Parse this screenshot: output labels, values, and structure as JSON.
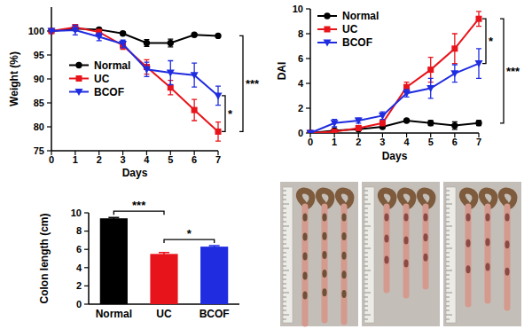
{
  "chart_data": [
    {
      "type": "line",
      "y_label": "Weight (%)",
      "x_label": "Days",
      "x": [
        0,
        1,
        2,
        3,
        4,
        5,
        6,
        7
      ],
      "xlim": [
        0,
        7
      ],
      "xticks": [
        0,
        1,
        2,
        3,
        4,
        5,
        6,
        7
      ],
      "ylim": [
        75,
        105
      ],
      "yticks": [
        75,
        80,
        85,
        90,
        95,
        100
      ],
      "legend": "center left",
      "series": [
        {
          "name": "Normal",
          "color": "#000000",
          "marker": "circle",
          "values": [
            100,
            100.5,
            100.3,
            99.5,
            97.5,
            97.5,
            99.2,
            99.0
          ],
          "errors": [
            0,
            0.3,
            0.3,
            0.3,
            0.7,
            0.8,
            0.3,
            0.3
          ]
        },
        {
          "name": "UC",
          "color": "#e8141b",
          "marker": "square",
          "values": [
            100,
            100.8,
            99.8,
            97.0,
            92.5,
            88.2,
            83.5,
            79.0
          ],
          "errors": [
            0,
            0.5,
            0.5,
            0.8,
            1.5,
            1.5,
            2.2,
            2.0
          ]
        },
        {
          "name": "BCOF",
          "color": "#1f2ce0",
          "marker": "triangle-down",
          "values": [
            100,
            100.2,
            98.8,
            97.3,
            92.0,
            91.3,
            90.8,
            86.5
          ],
          "errors": [
            0,
            1.0,
            0.8,
            0.8,
            1.5,
            2.5,
            2.5,
            2.0
          ]
        }
      ],
      "annotations": [
        {
          "text": "*",
          "between": [
            "UC",
            "BCOF"
          ]
        },
        {
          "text": "***",
          "between": [
            "Normal",
            "UC"
          ]
        }
      ]
    },
    {
      "type": "line",
      "y_label": "DAI",
      "x_label": "Days",
      "x": [
        0,
        1,
        2,
        3,
        4,
        5,
        6,
        7
      ],
      "xlim": [
        0,
        7
      ],
      "xticks": [
        0,
        1,
        2,
        3,
        4,
        5,
        6,
        7
      ],
      "ylim": [
        0,
        10
      ],
      "yticks": [
        0,
        2,
        4,
        6,
        8,
        10
      ],
      "legend": "upper left",
      "series": [
        {
          "name": "Normal",
          "color": "#000000",
          "marker": "circle",
          "values": [
            0,
            0.2,
            0.3,
            0.5,
            1.0,
            0.8,
            0.6,
            0.8
          ],
          "errors": [
            0,
            0.1,
            0.1,
            0.1,
            0.1,
            0.2,
            0.3,
            0.2
          ]
        },
        {
          "name": "UC",
          "color": "#e8141b",
          "marker": "square",
          "values": [
            0,
            0.1,
            0.4,
            0.8,
            3.7,
            5.1,
            6.8,
            9.2
          ],
          "errors": [
            0,
            0.1,
            0.2,
            0.2,
            0.4,
            1.0,
            1.2,
            0.6
          ]
        },
        {
          "name": "BCOF",
          "color": "#1f2ce0",
          "marker": "triangle-down",
          "values": [
            0,
            0.8,
            1.0,
            1.4,
            3.2,
            3.6,
            4.8,
            5.6
          ],
          "errors": [
            0,
            0.3,
            0.2,
            0.3,
            0.3,
            0.8,
            0.7,
            1.2
          ]
        }
      ],
      "annotations": [
        {
          "text": "*",
          "between": [
            "UC",
            "BCOF"
          ]
        },
        {
          "text": "***",
          "between": [
            "Normal",
            "UC"
          ]
        }
      ]
    },
    {
      "type": "bar",
      "y_label": "Colon length (cm)",
      "categories": [
        "Normal",
        "UC",
        "BCOF"
      ],
      "values": [
        9.4,
        5.5,
        6.3
      ],
      "errors": [
        0.1,
        0.15,
        0.1
      ],
      "colors": [
        "#000000",
        "#e8141b",
        "#1f2ce0"
      ],
      "ylim": [
        0,
        10
      ],
      "yticks": [
        0,
        2,
        4,
        6,
        8,
        10
      ],
      "annotations": [
        {
          "text": "***",
          "between": [
            "Normal",
            "UC"
          ]
        },
        {
          "text": "*",
          "between": [
            "UC",
            "BCOF"
          ]
        }
      ]
    }
  ]
}
